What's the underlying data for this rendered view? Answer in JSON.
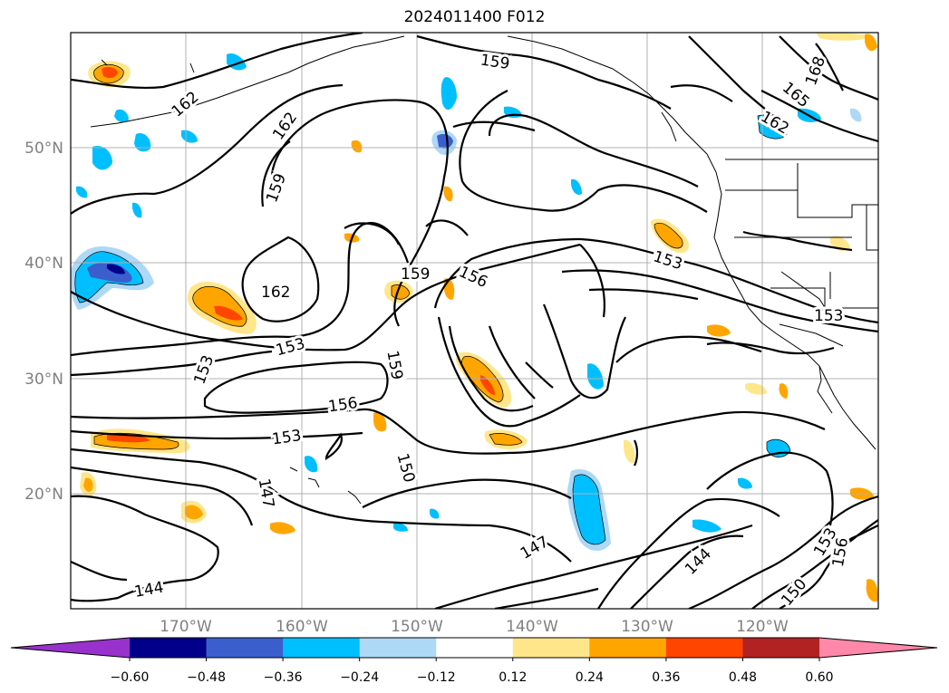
{
  "title": "2024011400 F012",
  "map": {
    "lon_labels": [
      "170°W",
      "160°W",
      "150°W",
      "140°W",
      "130°W",
      "120°W"
    ],
    "lat_labels": [
      "50°N",
      "40°N",
      "30°N",
      "20°N"
    ],
    "contour_labels": [
      "162",
      "162",
      "159",
      "159",
      "168",
      "165",
      "162",
      "159",
      "156",
      "162",
      "153",
      "153",
      "153",
      "159",
      "156",
      "153",
      "147",
      "150",
      "147",
      "144",
      "153",
      "156",
      "150",
      "144"
    ],
    "colors": {
      "coast": "#000000",
      "grid": "#b0b0b0",
      "text": "#808080"
    }
  },
  "colorbar": {
    "ticks": [
      "−0.60",
      "−0.48",
      "−0.36",
      "−0.24",
      "−0.12",
      "0.12",
      "0.24",
      "0.36",
      "0.48",
      "0.60"
    ],
    "colors": [
      "#9932cc",
      "#00008b",
      "#3a5fcd",
      "#00bfff",
      "#add8f6",
      "#ffffff",
      "#ffe68a",
      "#ffa500",
      "#ff4500",
      "#b22222",
      "#ff88aa"
    ]
  }
}
